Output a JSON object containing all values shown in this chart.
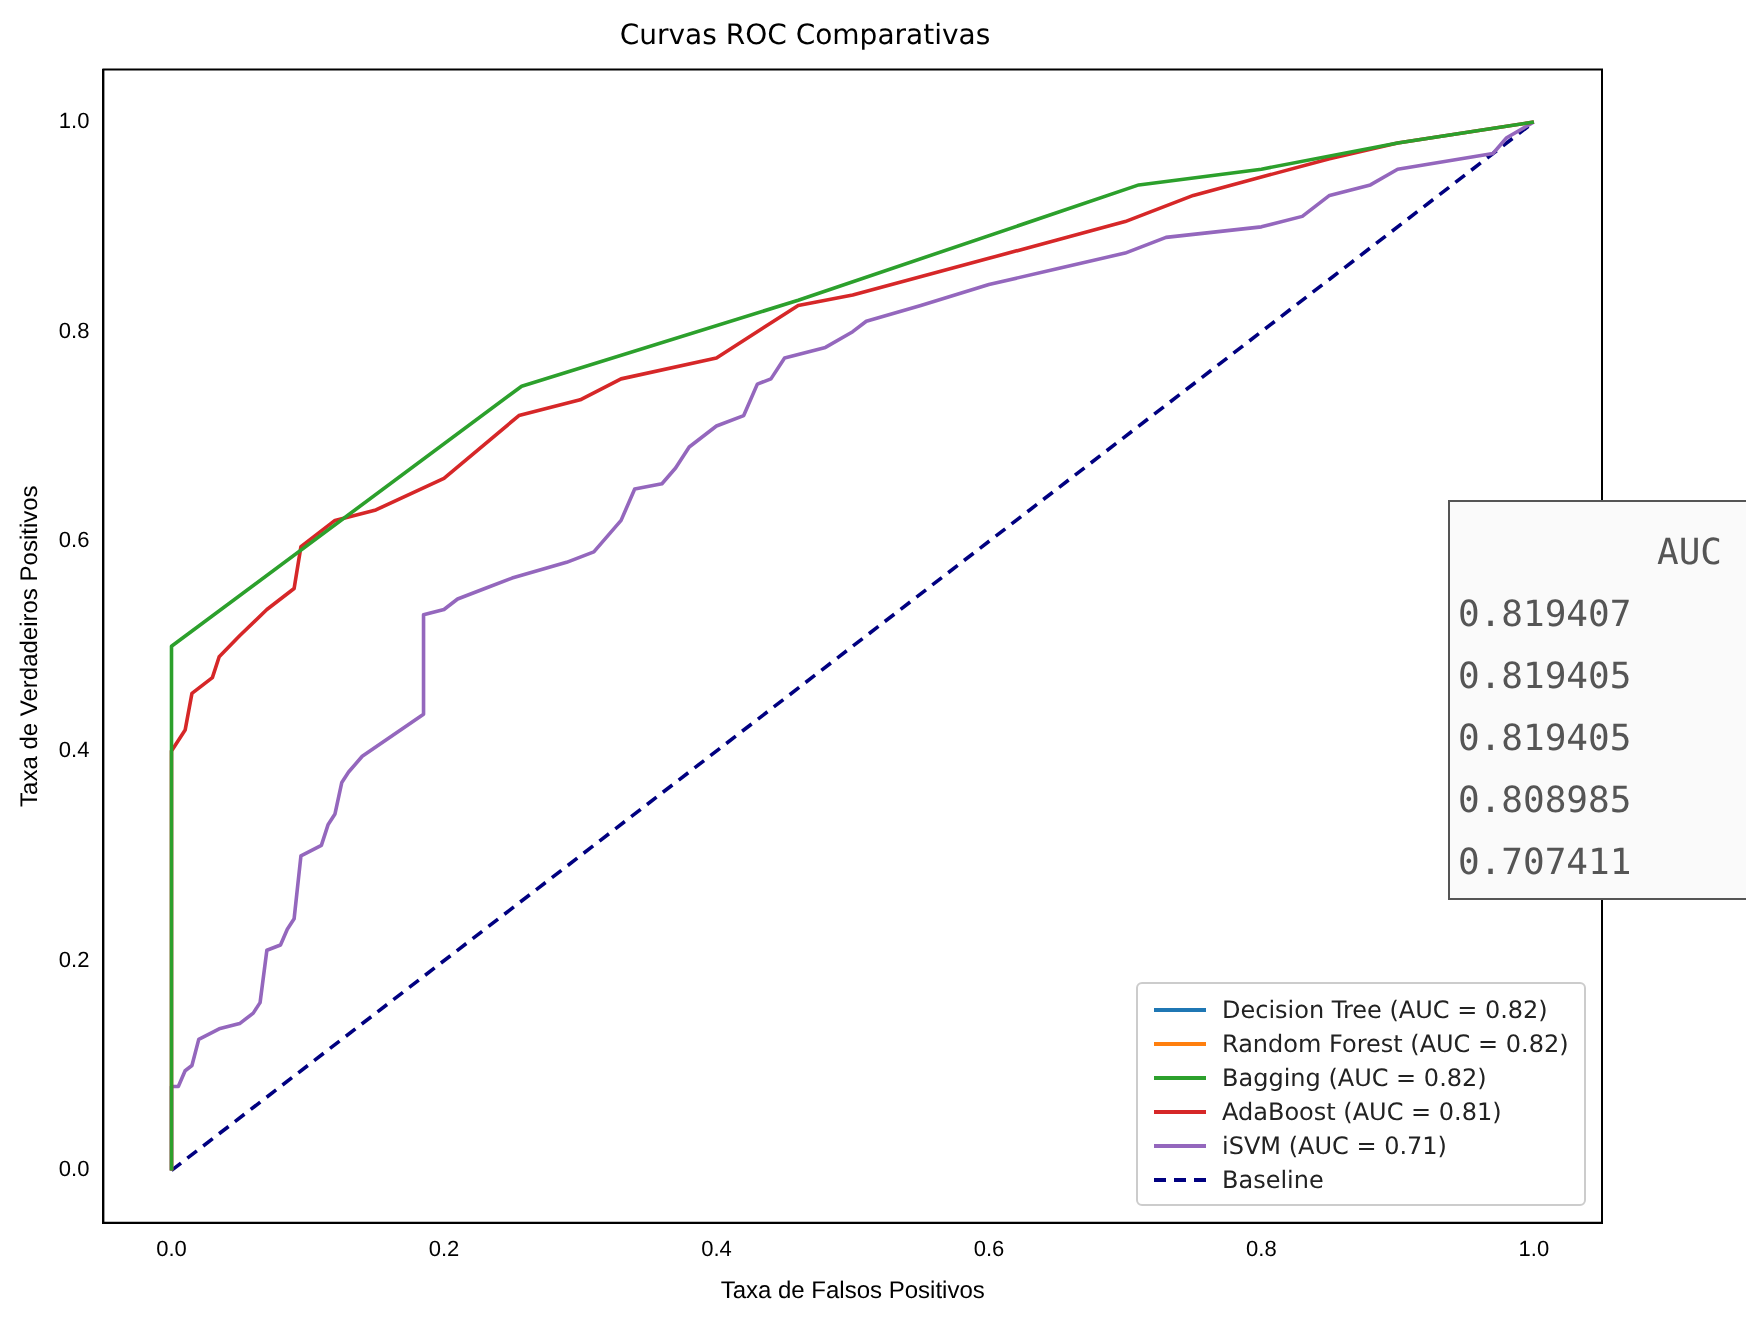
{
  "chart_data": {
    "type": "line",
    "title": "Curvas ROC Comparativas",
    "xlabel": "Taxa de Falsos Positivos",
    "ylabel": "Taxa de Verdadeiros Positivos",
    "xlim": [
      -0.05,
      1.05
    ],
    "ylim": [
      -0.05,
      1.05
    ],
    "xticks": [
      {
        "value": 0,
        "label": "0.0"
      },
      {
        "value": 0.2,
        "label": "0.2"
      },
      {
        "value": 0.4,
        "label": "0.4"
      },
      {
        "value": 0.6,
        "label": "0.6"
      },
      {
        "value": 0.8,
        "label": "0.8"
      },
      {
        "value": 1,
        "label": "1.0"
      }
    ],
    "yticks": [
      {
        "value": 0,
        "label": "0.0"
      },
      {
        "value": 0.2,
        "label": "0.2"
      },
      {
        "value": 0.4,
        "label": "0.4"
      },
      {
        "value": 0.6,
        "label": "0.6"
      },
      {
        "value": 0.8,
        "label": "0.8"
      },
      {
        "value": 1,
        "label": "1.0"
      }
    ],
    "grid": false,
    "legend": "bottom right",
    "marker": "none",
    "series": [
      {
        "name": "Decision Tree (AUC = 0.82)",
        "color": "#1f77b4"
      },
      {
        "name": "Random Forest (AUC = 0.82)",
        "color": "#ff7f0e"
      },
      {
        "name": "Bagging (AUC = 0.82)",
        "color": "#2ca02c",
        "x": [
          0,
          0,
          0.257,
          0.46,
          0.71,
          0.8,
          0.9,
          1
        ],
        "values": [
          0,
          0.5,
          0.748,
          0.83,
          0.94,
          0.955,
          0.98,
          1
        ]
      },
      {
        "name": "AdaBoost (AUC = 0.81)",
        "color": "#d62728",
        "x": [
          0,
          0,
          0.01,
          0.015,
          0.03,
          0.035,
          0.05,
          0.07,
          0.09,
          0.095,
          0.12,
          0.15,
          0.2,
          0.255,
          0.3,
          0.33,
          0.4,
          0.46,
          0.5,
          0.6,
          0.7,
          0.75,
          0.85,
          0.9,
          1
        ],
        "values": [
          0,
          0.4,
          0.42,
          0.455,
          0.47,
          0.49,
          0.51,
          0.535,
          0.555,
          0.595,
          0.62,
          0.63,
          0.66,
          0.72,
          0.735,
          0.755,
          0.775,
          0.825,
          0.835,
          0.87,
          0.905,
          0.93,
          0.965,
          0.98,
          1
        ]
      },
      {
        "name": "iSVM (AUC = 0.71)",
        "color": "#9467bd",
        "x": [
          0,
          0,
          0.005,
          0.01,
          0.015,
          0.02,
          0.035,
          0.05,
          0.06,
          0.065,
          0.07,
          0.08,
          0.085,
          0.09,
          0.095,
          0.11,
          0.115,
          0.12,
          0.125,
          0.13,
          0.14,
          0.185,
          0.185,
          0.2,
          0.21,
          0.23,
          0.25,
          0.29,
          0.31,
          0.33,
          0.34,
          0.36,
          0.37,
          0.38,
          0.39,
          0.4,
          0.42,
          0.43,
          0.44,
          0.45,
          0.48,
          0.5,
          0.51,
          0.55,
          0.6,
          0.65,
          0.7,
          0.73,
          0.8,
          0.83,
          0.85,
          0.88,
          0.9,
          0.97,
          0.98,
          1
        ],
        "values": [
          0,
          0.08,
          0.08,
          0.095,
          0.1,
          0.125,
          0.135,
          0.14,
          0.15,
          0.16,
          0.21,
          0.215,
          0.23,
          0.24,
          0.3,
          0.31,
          0.33,
          0.34,
          0.37,
          0.38,
          0.395,
          0.435,
          0.53,
          0.535,
          0.545,
          0.555,
          0.565,
          0.58,
          0.59,
          0.62,
          0.65,
          0.655,
          0.67,
          0.69,
          0.7,
          0.71,
          0.72,
          0.75,
          0.755,
          0.775,
          0.785,
          0.8,
          0.81,
          0.825,
          0.845,
          0.86,
          0.875,
          0.89,
          0.9,
          0.91,
          0.93,
          0.94,
          0.955,
          0.97,
          0.985,
          1
        ]
      },
      {
        "name": "Baseline",
        "color": "#000080",
        "line_style": "dashed",
        "x": [
          0,
          1
        ],
        "values": [
          0,
          1
        ]
      }
    ],
    "annotations": [
      "AUC",
      "0.819407",
      "0.819405",
      "0.819405",
      "0.808985",
      "0.707411"
    ]
  }
}
